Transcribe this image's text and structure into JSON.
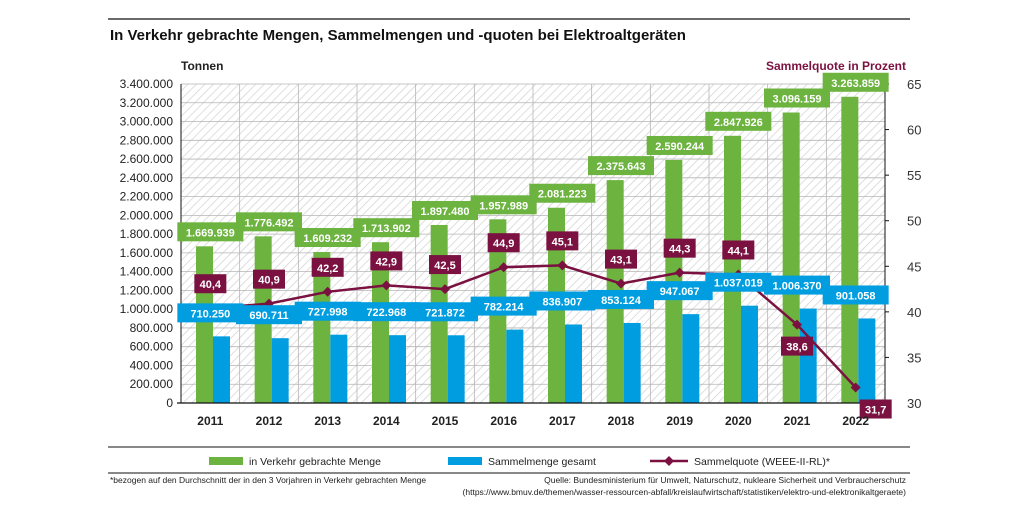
{
  "title": "In Verkehr gebrachte Mengen, Sammelmengen und -quoten bei Elektroaltgeräten",
  "left_unit": "Tonnen",
  "right_unit": "Sammelquote in Prozent",
  "footnote": "*bezogen auf den Durchschnitt der in den 3 Vorjahren in Verkehr gebrachten Menge",
  "source_line1": "Quelle: Bundesministerium für Umwelt, Naturschutz, nukleare Sicherheit und Verbraucherschutz",
  "source_line2": "(https://www.bmuv.de/themen/wasser-ressourcen-abfall/kreislaufwirtschaft/statistiken/elektro-und-elektronikaltgeraete)",
  "colors": {
    "green": "#6cb33f",
    "blue": "#009ee0",
    "maroon": "#7a1140",
    "hatch": "#cccccc"
  },
  "chart_data": {
    "type": "bar",
    "categories": [
      "2011",
      "2012",
      "2013",
      "2014",
      "2015",
      "2016",
      "2017",
      "2018",
      "2019",
      "2020",
      "2021",
      "2022"
    ],
    "series": [
      {
        "name": "in Verkehr gebrachte Menge",
        "kind": "bar",
        "axis": "left",
        "color": "#6cb33f",
        "values": [
          1669939,
          1776492,
          1609232,
          1713902,
          1897480,
          1957989,
          2081223,
          2375643,
          2590244,
          2847926,
          3096159,
          3263859
        ],
        "labels": [
          "1.669.939",
          "1.776.492",
          "1.609.232",
          "1.713.902",
          "1.897.480",
          "1.957.989",
          "2.081.223",
          "2.375.643",
          "2.590.244",
          "2.847.926",
          "3.096.159",
          "3.263.859"
        ]
      },
      {
        "name": "Sammelmenge gesamt",
        "kind": "bar",
        "axis": "left",
        "color": "#009ee0",
        "values": [
          710250,
          690711,
          727998,
          722968,
          721872,
          782214,
          836907,
          853124,
          947067,
          1037019,
          1006370,
          901058
        ],
        "labels": [
          "710.250",
          "690.711",
          "727.998",
          "722.968",
          "721.872",
          "782.214",
          "836.907",
          "853.124",
          "947.067",
          "1.037.019",
          "1.006.370",
          "901.058"
        ]
      },
      {
        "name": "Sammelquote (WEEE-II-RL)*",
        "kind": "line",
        "axis": "right",
        "color": "#7a1140",
        "values": [
          40.4,
          40.9,
          42.2,
          42.9,
          42.5,
          44.9,
          45.1,
          43.1,
          44.3,
          44.1,
          38.6,
          31.7
        ],
        "labels": [
          "40,4",
          "40,9",
          "42,2",
          "42,9",
          "42,5",
          "44,9",
          "45,1",
          "43,1",
          "44,3",
          "44,1",
          "38,6",
          "31,7"
        ]
      }
    ],
    "ylim": [
      0,
      3400000
    ],
    "yticks": [
      "0",
      "200.000",
      "400.000",
      "600.000",
      "800.000",
      "1.000.000",
      "1.200.000",
      "1.400.000",
      "1.600.000",
      "1.800.000",
      "2.000.000",
      "2.200.000",
      "2.400.000",
      "2.600.000",
      "2.800.000",
      "3.000.000",
      "3.200.000",
      "3.400.000"
    ],
    "y2lim": [
      30,
      65
    ],
    "y2ticks": [
      "30",
      "35",
      "40",
      "45",
      "50",
      "55",
      "60",
      "65"
    ],
    "grid": true,
    "legend_position": "bottom"
  }
}
